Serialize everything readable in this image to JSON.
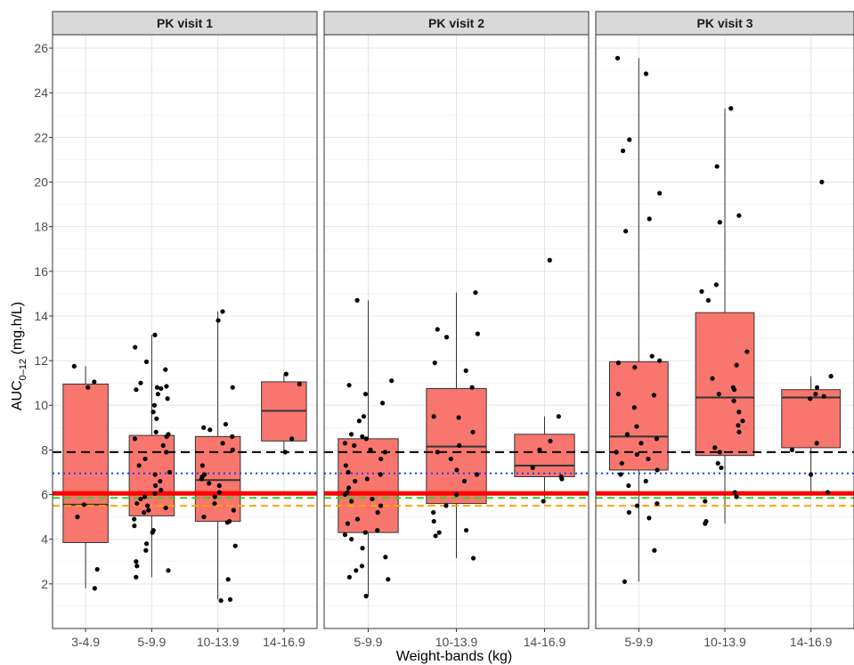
{
  "chart_data": {
    "type": "boxplot",
    "xlabel": "Weight-bands (kg)",
    "ylabel": {
      "base": "AUC",
      "subscript": "0–12",
      "suffix": " (mg.h/L)"
    },
    "ylim": [
      0,
      26.6
    ],
    "yticks": [
      2,
      4,
      6,
      8,
      10,
      12,
      14,
      16,
      18,
      20,
      22,
      24,
      26
    ],
    "grid": true,
    "box_color": "#f8766d",
    "reference_lines": [
      {
        "value": 7.9,
        "color": "#000000",
        "style": "dashed"
      },
      {
        "value": 6.95,
        "color": "#1e3cff",
        "style": "dotted"
      },
      {
        "value": 6.05,
        "color": "#ff0000",
        "style": "solid-thick"
      },
      {
        "value": 5.85,
        "color": "#33cc33",
        "style": "dashed"
      },
      {
        "value": 5.5,
        "color": "#ffa500",
        "style": "dashed"
      }
    ],
    "panels": [
      {
        "title": "PK visit 1",
        "categories": [
          "3-4.9",
          "5-9.9",
          "10-13.9",
          "14-16.9"
        ],
        "boxes": [
          {
            "q1": 3.85,
            "median": 5.55,
            "q3": 10.95,
            "whisker_low": 1.8,
            "whisker_high": 11.75
          },
          {
            "q1": 5.05,
            "median": 6.1,
            "q3": 8.65,
            "whisker_low": 2.3,
            "whisker_high": 13.15
          },
          {
            "q1": 4.8,
            "median": 6.65,
            "q3": 8.6,
            "whisker_low": 1.3,
            "whisker_high": 14.2
          },
          {
            "q1": 8.4,
            "median": 9.75,
            "q3": 11.05,
            "whisker_low": 7.9,
            "whisker_high": 11.4
          }
        ],
        "points": [
          [
            11.75,
            11.05,
            10.8,
            5.55,
            5.0,
            2.65,
            1.8
          ],
          [
            13.15,
            12.6,
            11.95,
            11.6,
            11.0,
            10.85,
            10.8,
            10.75,
            10.7,
            10.5,
            10.3,
            10.0,
            9.7,
            9.4,
            8.8,
            8.7,
            8.6,
            8.5,
            8.2,
            7.9,
            7.6,
            7.3,
            7.0,
            6.9,
            6.6,
            6.4,
            6.2,
            6.05,
            5.9,
            5.8,
            5.6,
            5.5,
            5.4,
            5.3,
            5.2,
            4.9,
            4.6,
            4.4,
            4.3,
            3.8,
            3.5,
            3.0,
            2.8,
            2.6,
            2.3
          ],
          [
            14.2,
            13.8,
            10.8,
            9.15,
            9.0,
            8.9,
            8.6,
            8.3,
            8.0,
            7.3,
            6.9,
            6.8,
            6.7,
            6.5,
            6.4,
            6.1,
            5.9,
            5.6,
            5.3,
            5.0,
            4.8,
            4.75,
            3.7,
            2.2,
            1.3,
            1.25
          ],
          [
            11.4,
            10.95,
            8.5,
            7.9
          ]
        ]
      },
      {
        "title": "PK visit 2",
        "categories": [
          "5-9.9",
          "10-13.9",
          "14-16.9"
        ],
        "boxes": [
          {
            "q1": 4.3,
            "median": 6.1,
            "q3": 8.5,
            "whisker_low": 1.45,
            "whisker_high": 14.7
          },
          {
            "q1": 5.6,
            "median": 8.15,
            "q3": 10.75,
            "whisker_low": 3.15,
            "whisker_high": 15.05
          },
          {
            "q1": 6.8,
            "median": 7.3,
            "q3": 8.7,
            "whisker_low": 5.7,
            "whisker_high": 9.5
          }
        ],
        "points": [
          [
            14.7,
            11.1,
            10.9,
            10.5,
            10.1,
            9.5,
            9.3,
            8.7,
            8.6,
            8.5,
            8.3,
            8.2,
            8.0,
            7.9,
            7.6,
            7.3,
            7.0,
            6.9,
            6.7,
            6.6,
            6.3,
            6.1,
            6.0,
            5.8,
            5.7,
            5.5,
            5.2,
            4.9,
            4.7,
            4.4,
            4.3,
            4.2,
            4.0,
            3.6,
            3.2,
            2.8,
            2.6,
            2.3,
            2.2,
            1.45
          ],
          [
            15.05,
            13.4,
            13.2,
            13.05,
            11.9,
            11.55,
            10.8,
            9.5,
            9.45,
            8.8,
            8.2,
            7.9,
            7.6,
            7.1,
            6.9,
            6.6,
            6.0,
            5.5,
            5.2,
            4.8,
            4.4,
            4.3,
            4.15,
            3.15
          ],
          [
            16.5,
            9.5,
            8.4,
            8.0,
            7.2,
            6.8,
            6.7,
            5.7
          ]
        ]
      },
      {
        "title": "PK visit 3",
        "categories": [
          "5-9.9",
          "10-13.9",
          "14-16.9"
        ],
        "boxes": [
          {
            "q1": 7.1,
            "median": 8.6,
            "q3": 11.95,
            "whisker_low": 2.1,
            "whisker_high": 25.55
          },
          {
            "q1": 7.75,
            "median": 10.35,
            "q3": 14.15,
            "whisker_low": 4.7,
            "whisker_high": 23.3
          },
          {
            "q1": 8.1,
            "median": 10.35,
            "q3": 10.7,
            "whisker_low": 6.1,
            "whisker_high": 11.3
          }
        ],
        "points": [
          [
            25.55,
            24.85,
            21.9,
            21.4,
            19.5,
            18.35,
            17.8,
            12.2,
            12.0,
            11.9,
            11.7,
            10.5,
            10.45,
            9.9,
            9.05,
            8.7,
            8.5,
            8.3,
            7.9,
            7.8,
            7.6,
            7.4,
            7.1,
            6.9,
            6.6,
            6.4,
            5.6,
            5.5,
            5.2,
            4.95,
            3.5,
            2.1
          ],
          [
            23.3,
            20.7,
            18.5,
            18.2,
            15.4,
            15.1,
            14.7,
            12.4,
            11.8,
            11.2,
            10.8,
            10.7,
            10.5,
            10.2,
            9.7,
            9.3,
            9.1,
            8.8,
            8.1,
            7.9,
            7.4,
            7.2,
            6.1,
            5.9,
            5.7,
            4.8,
            4.7
          ],
          [
            20.0,
            11.3,
            10.8,
            10.5,
            10.4,
            10.3,
            8.3,
            8.0,
            6.9,
            6.1
          ]
        ]
      }
    ]
  }
}
